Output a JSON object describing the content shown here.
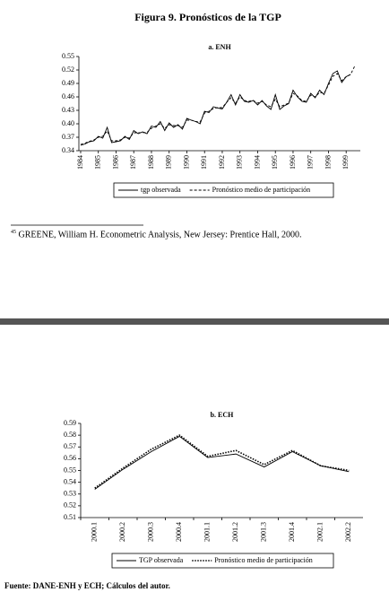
{
  "title": "Figura 9. Pronósticos de la TGP",
  "chart_data": [
    {
      "type": "line",
      "title": "a. ENH",
      "x": [
        1984,
        1984.25,
        1984.5,
        1984.75,
        1985,
        1985.25,
        1985.5,
        1985.75,
        1986,
        1986.25,
        1986.5,
        1986.75,
        1987,
        1987.25,
        1987.5,
        1987.75,
        1988,
        1988.25,
        1988.5,
        1988.75,
        1989,
        1989.25,
        1989.5,
        1989.75,
        1990,
        1990.25,
        1990.5,
        1990.75,
        1991,
        1991.25,
        1991.5,
        1991.75,
        1992,
        1992.25,
        1992.5,
        1992.75,
        1993,
        1993.25,
        1993.5,
        1993.75,
        1994,
        1994.25,
        1994.5,
        1994.75,
        1995,
        1995.25,
        1995.5,
        1995.75,
        1996,
        1996.25,
        1996.5,
        1996.75,
        1997,
        1997.25,
        1997.5,
        1997.75,
        1998,
        1998.25,
        1998.5,
        1998.75,
        1999,
        1999.25,
        1999.5
      ],
      "series": [
        {
          "name": "tgp observada",
          "color": "#000000",
          "style": "solid",
          "values": [
            0.352,
            0.355,
            0.36,
            0.362,
            0.372,
            0.368,
            0.392,
            0.358,
            0.36,
            0.362,
            0.372,
            0.365,
            0.385,
            0.378,
            0.382,
            0.378,
            0.395,
            0.392,
            0.405,
            0.385,
            0.402,
            0.392,
            0.398,
            0.388,
            0.412,
            0.408,
            0.405,
            0.4,
            0.428,
            0.425,
            0.438,
            0.435,
            0.433,
            0.448,
            0.465,
            0.442,
            0.465,
            0.45,
            0.448,
            0.452,
            0.442,
            0.452,
            0.44,
            0.432,
            0.465,
            0.432,
            0.44,
            0.445,
            0.475,
            0.46,
            0.45,
            0.448,
            0.468,
            0.458,
            0.475,
            0.465,
            0.49,
            0.512,
            0.518,
            0.492,
            0.505,
            0.51,
            null
          ]
        },
        {
          "name": "Pronóstico medio de participación",
          "color": "#000000",
          "style": "dashed",
          "values": [
            0.354,
            0.357,
            0.361,
            0.364,
            0.37,
            0.372,
            0.384,
            0.362,
            0.362,
            0.364,
            0.37,
            0.368,
            0.38,
            0.38,
            0.38,
            0.381,
            0.39,
            0.395,
            0.4,
            0.39,
            0.398,
            0.396,
            0.396,
            0.392,
            0.408,
            0.408,
            0.405,
            0.404,
            0.424,
            0.428,
            0.434,
            0.436,
            0.436,
            0.448,
            0.458,
            0.446,
            0.46,
            0.452,
            0.45,
            0.452,
            0.446,
            0.45,
            0.442,
            0.438,
            0.455,
            0.438,
            0.442,
            0.446,
            0.468,
            0.462,
            0.452,
            0.45,
            0.464,
            0.46,
            0.47,
            0.468,
            0.486,
            0.506,
            0.512,
            0.496,
            0.505,
            0.51,
            0.53
          ]
        }
      ],
      "xlim": [
        1983.9,
        1999.8
      ],
      "xticks": [
        1984,
        1985,
        1986,
        1987,
        1988,
        1989,
        1990,
        1991,
        1992,
        1993,
        1994,
        1995,
        1996,
        1997,
        1998,
        1999
      ],
      "ylim": [
        0.34,
        0.55
      ],
      "yticks": [
        0.34,
        0.37,
        {
          "value": 0.4,
          "label": "0.40"
        },
        0.43,
        0.46,
        0.49,
        0.52,
        0.55
      ]
    },
    {
      "type": "line",
      "title": "b. ECH",
      "categories": [
        "2000.1",
        "2000.2",
        "2000.3",
        "2000.4",
        "2001.1",
        "2001.2",
        "2001.3",
        "2001.4",
        "2002.1",
        "2002.2"
      ],
      "series": [
        {
          "name": "TGP observada",
          "color": "#000000",
          "style": "solid",
          "values": [
            0.534,
            0.551,
            0.566,
            0.579,
            0.561,
            0.564,
            0.553,
            0.566,
            0.554,
            0.549
          ]
        },
        {
          "name": "Pronóstico medio de participación",
          "color": "#000000",
          "style": "dotted",
          "values": [
            0.535,
            0.552,
            0.568,
            0.58,
            0.562,
            0.567,
            0.555,
            0.567,
            0.554,
            0.55
          ]
        }
      ],
      "ylim": [
        0.51,
        0.59
      ],
      "yticks": [
        0.51,
        0.52,
        0.53,
        0.54,
        0.55,
        0.56,
        0.57,
        0.58,
        0.59
      ]
    }
  ],
  "footnote": {
    "number": "45",
    "text": "GREENE, William H. Econometric Analysis, New Jersey: Prentice Hall, 2000."
  },
  "source": "Fuente: DANE-ENH y ECH; Cálculos del autor."
}
